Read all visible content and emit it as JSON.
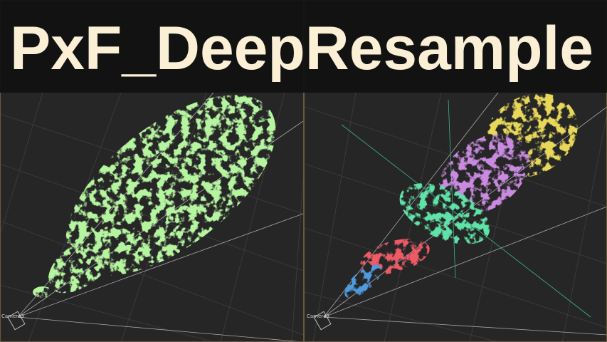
{
  "header": {
    "title": "PxF_DeepResample"
  },
  "viewports": [
    {
      "camera_label": "Camera3"
    },
    {
      "camera_label": "Camera3"
    }
  ]
}
